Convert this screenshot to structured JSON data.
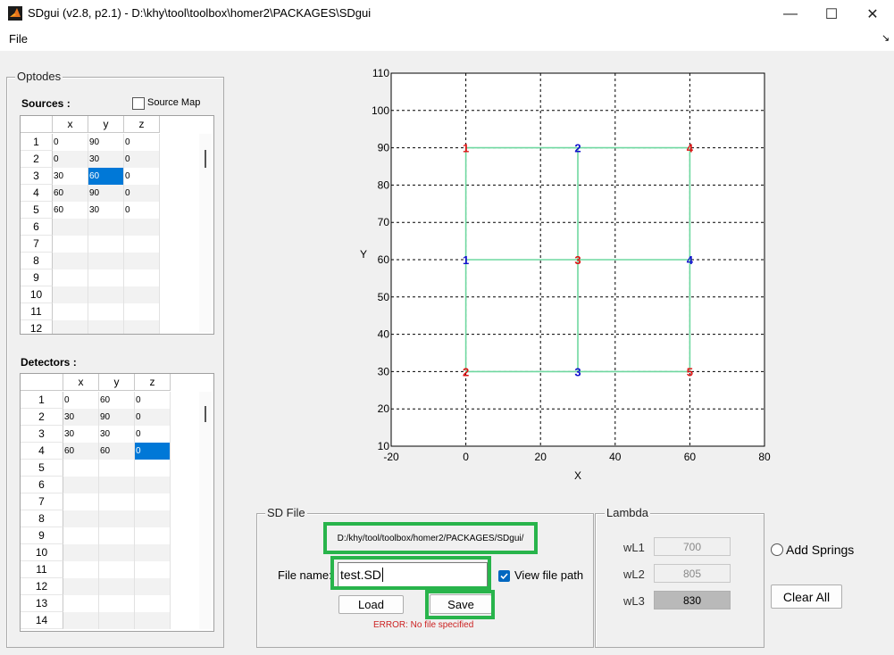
{
  "window": {
    "title": "SDgui  (v2.8, p2.1) - D:\\khy\\tool\\toolbox\\homer2\\PACKAGES\\SDgui",
    "minimize": "—",
    "maximize": "☐",
    "close": "✕"
  },
  "menu": {
    "file": "File",
    "arrow": "↘"
  },
  "optodes": {
    "title": "Optodes",
    "sources_label": "Sources :",
    "source_map_label": "Source Map",
    "source_map_checked": false,
    "detectors_label": "Detectors :",
    "columns": [
      "x",
      "y",
      "z"
    ],
    "sources": [
      [
        "1",
        "0",
        "90",
        "0"
      ],
      [
        "2",
        "0",
        "30",
        "0"
      ],
      [
        "3",
        "30",
        "60",
        "0"
      ],
      [
        "4",
        "60",
        "90",
        "0"
      ],
      [
        "5",
        "60",
        "30",
        "0"
      ],
      [
        "6",
        "",
        "",
        ""
      ],
      [
        "7",
        "",
        "",
        ""
      ],
      [
        "8",
        "",
        "",
        ""
      ],
      [
        "9",
        "",
        "",
        ""
      ],
      [
        "10",
        "",
        "",
        ""
      ],
      [
        "11",
        "",
        "",
        ""
      ],
      [
        "12",
        "",
        "",
        ""
      ]
    ],
    "detectors": [
      [
        "1",
        "0",
        "60",
        "0"
      ],
      [
        "2",
        "30",
        "90",
        "0"
      ],
      [
        "3",
        "30",
        "30",
        "0"
      ],
      [
        "4",
        "60",
        "60",
        "0"
      ],
      [
        "5",
        "",
        "",
        ""
      ],
      [
        "6",
        "",
        "",
        ""
      ],
      [
        "7",
        "",
        "",
        ""
      ],
      [
        "8",
        "",
        "",
        ""
      ],
      [
        "9",
        "",
        "",
        ""
      ],
      [
        "10",
        "",
        "",
        ""
      ],
      [
        "11",
        "",
        "",
        ""
      ],
      [
        "12",
        "",
        "",
        ""
      ],
      [
        "13",
        "",
        "",
        ""
      ],
      [
        "14",
        "",
        "",
        ""
      ]
    ]
  },
  "chart_data": {
    "type": "scatter",
    "xlabel": "X",
    "ylabel": "Y",
    "xlim": [
      -20,
      80
    ],
    "ylim": [
      10,
      110
    ],
    "xticks": [
      -20,
      0,
      20,
      40,
      60,
      80
    ],
    "yticks": [
      10,
      20,
      30,
      40,
      50,
      60,
      70,
      80,
      90,
      100,
      110
    ],
    "grid": true,
    "source_color": "#dd1111",
    "detector_color": "#1111cc",
    "link_color": "#6fd8a0",
    "sources": [
      {
        "label": "1",
        "x": 0,
        "y": 90
      },
      {
        "label": "2",
        "x": 0,
        "y": 30
      },
      {
        "label": "3",
        "x": 30,
        "y": 60
      },
      {
        "label": "4",
        "x": 60,
        "y": 90
      },
      {
        "label": "5",
        "x": 60,
        "y": 30
      }
    ],
    "detectors": [
      {
        "label": "1",
        "x": 0,
        "y": 60
      },
      {
        "label": "2",
        "x": 30,
        "y": 90
      },
      {
        "label": "3",
        "x": 30,
        "y": 30
      },
      {
        "label": "4",
        "x": 60,
        "y": 60
      }
    ],
    "links": [
      [
        [
          0,
          90
        ],
        [
          30,
          90
        ]
      ],
      [
        [
          30,
          90
        ],
        [
          60,
          90
        ]
      ],
      [
        [
          0,
          90
        ],
        [
          0,
          60
        ]
      ],
      [
        [
          0,
          60
        ],
        [
          0,
          30
        ]
      ],
      [
        [
          30,
          90
        ],
        [
          30,
          60
        ]
      ],
      [
        [
          30,
          60
        ],
        [
          30,
          30
        ]
      ],
      [
        [
          60,
          90
        ],
        [
          60,
          60
        ]
      ],
      [
        [
          60,
          60
        ],
        [
          60,
          30
        ]
      ],
      [
        [
          0,
          60
        ],
        [
          30,
          60
        ]
      ],
      [
        [
          30,
          60
        ],
        [
          60,
          60
        ]
      ],
      [
        [
          0,
          30
        ],
        [
          30,
          30
        ]
      ],
      [
        [
          30,
          30
        ],
        [
          60,
          30
        ]
      ]
    ]
  },
  "sd_file": {
    "title": "SD File",
    "path": "D:/khy/tool/toolbox/homer2/PACKAGES/SDgui/",
    "file_name_label": "File name:",
    "file_name_value": "test.SD",
    "view_path_label": "View file path",
    "view_path_checked": true,
    "load_label": "Load",
    "save_label": "Save",
    "error": "ERROR: No file specified",
    "error_color": "#cc2222"
  },
  "lambda": {
    "title": "Lambda",
    "items": [
      {
        "label": "wL1",
        "value": "700"
      },
      {
        "label": "wL2",
        "value": "805"
      },
      {
        "label": "wL3",
        "value": "830"
      }
    ]
  },
  "add_springs_label": "Add Springs",
  "clear_all_label": "Clear All",
  "highlight_color": "#28b44b"
}
